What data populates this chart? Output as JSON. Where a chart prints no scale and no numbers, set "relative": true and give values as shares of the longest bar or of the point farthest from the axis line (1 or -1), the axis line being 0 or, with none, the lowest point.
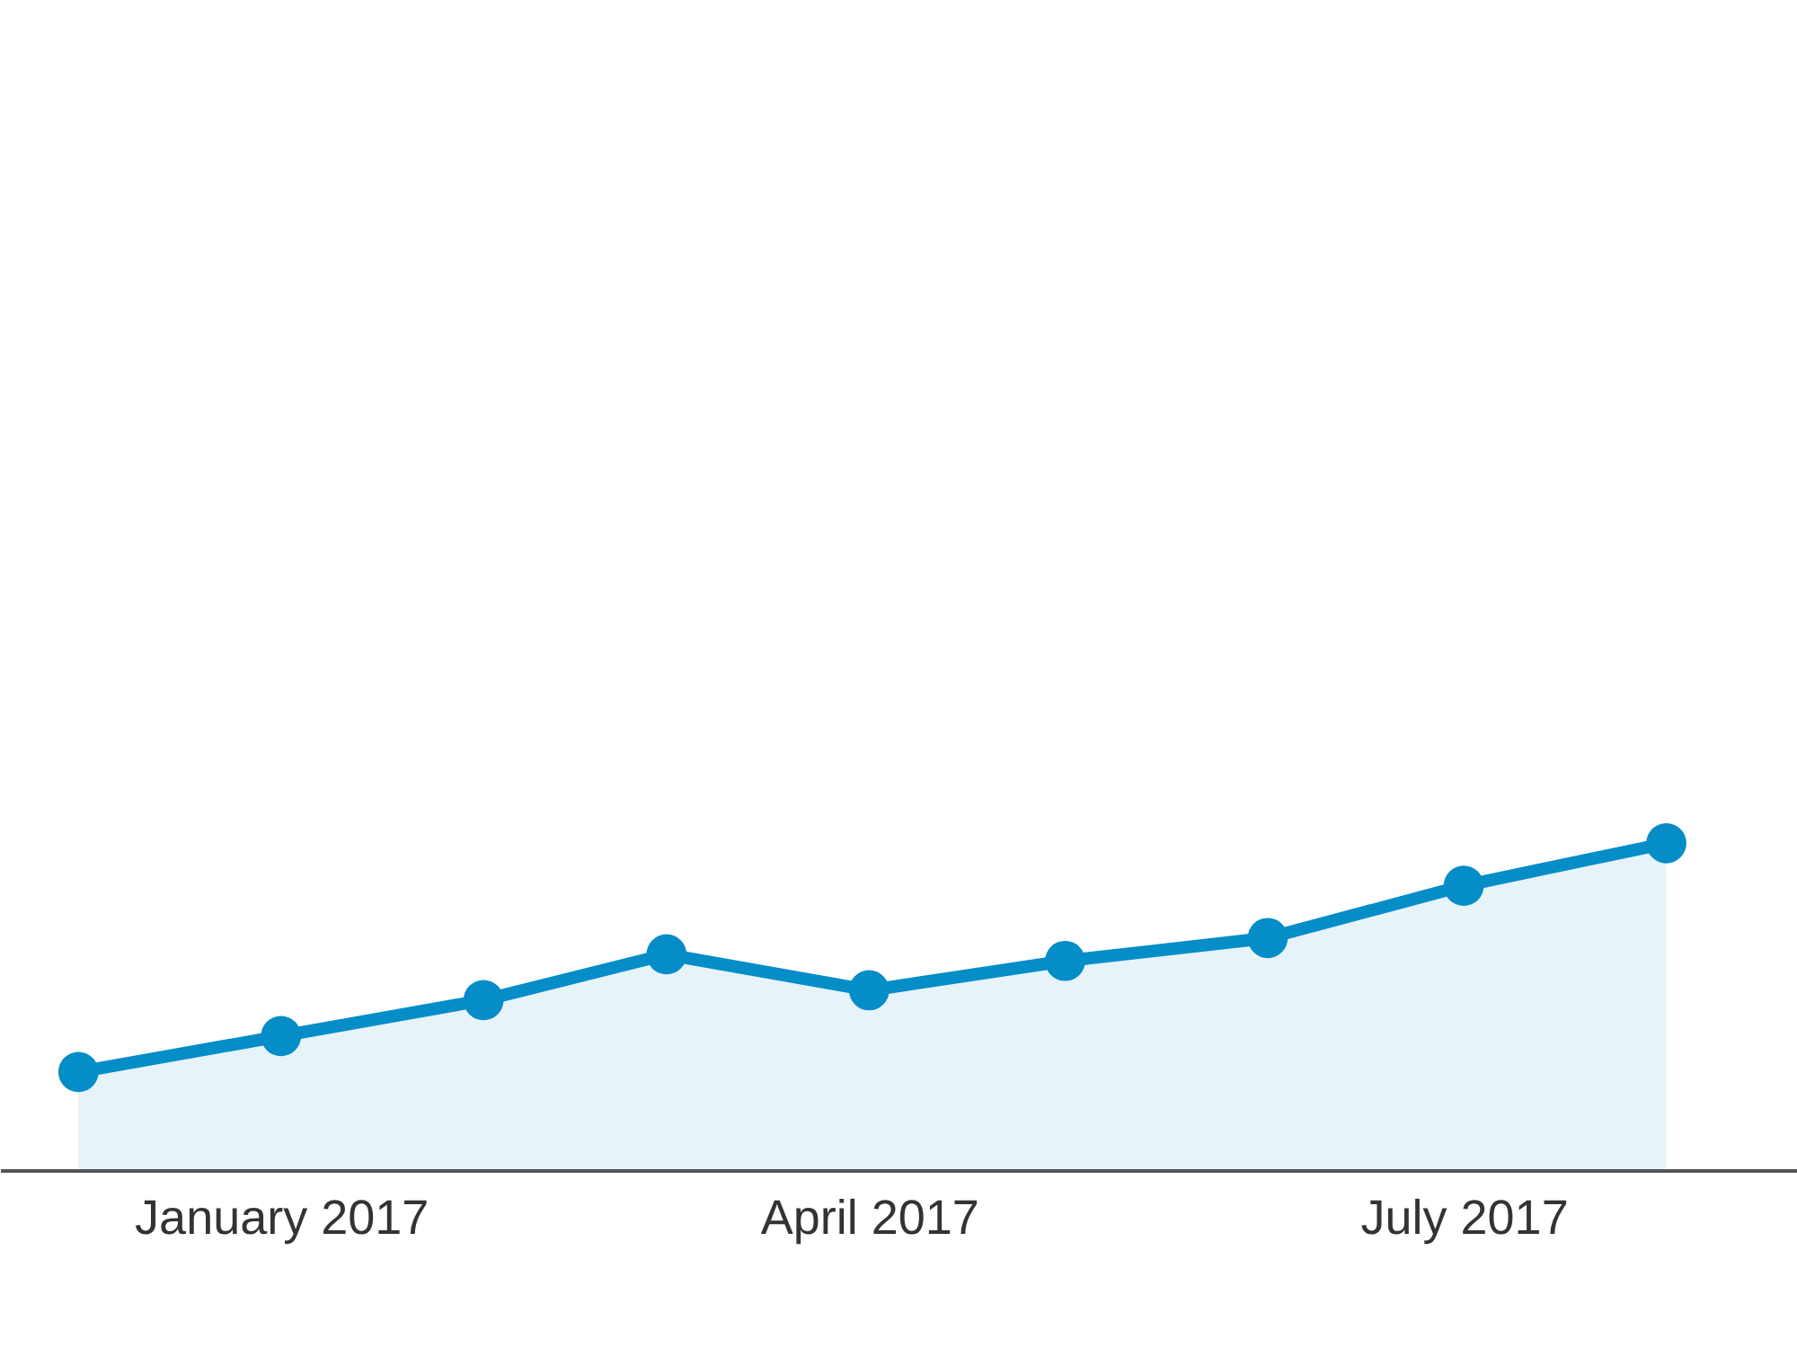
{
  "chart_data": {
    "type": "area",
    "relative": true,
    "x": [
      "2016-12-01",
      "2017-01-01",
      "2017-02-01",
      "2017-03-01",
      "2017-04-01",
      "2017-05-01",
      "2017-06-01",
      "2017-07-01",
      "2017-08-01"
    ],
    "series": [
      {
        "color": "#058dc7",
        "values": [
          0.3,
          0.41,
          0.52,
          0.66,
          0.55,
          0.64,
          0.71,
          0.87,
          1
        ]
      }
    ],
    "xlim": [
      "2016-11-19",
      "2017-08-21"
    ],
    "xticks": [
      {
        "value": "2017-01-01",
        "label": "January 2017"
      },
      {
        "value": "2017-04-01",
        "label": "April 2017"
      },
      {
        "value": "2017-07-01",
        "label": "July 2017"
      }
    ],
    "marker": "circle"
  }
}
